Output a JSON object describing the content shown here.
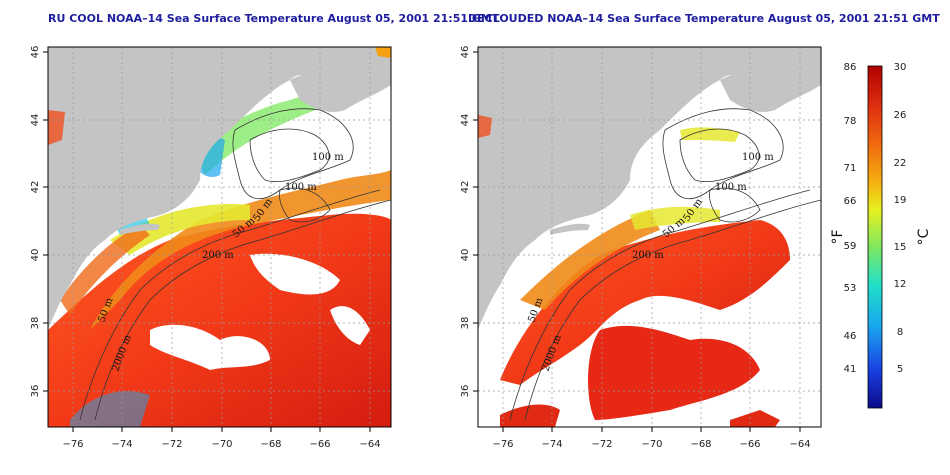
{
  "maps": [
    {
      "title": "RU COOL NOAA–14 Sea Surface Temperature August 05, 2001 21:51 GMT",
      "x_ticks": [
        "−76",
        "−74",
        "−72",
        "−70",
        "−68",
        "−66",
        "−64"
      ],
      "y_ticks": [
        "46",
        "44",
        "42",
        "40",
        "38",
        "36"
      ],
      "contour_labels": [
        "100 m",
        "100 m",
        "50 m",
        "50 m",
        "200 m",
        "50 m",
        "2000 m"
      ],
      "cloud_masked": false
    },
    {
      "title": "DECLOUDED NOAA–14 Sea Surface Temperature August 05, 2001 21:51 GMT",
      "x_ticks": [
        "−76",
        "−74",
        "−72",
        "−70",
        "−68",
        "−66",
        "−64"
      ],
      "y_ticks": [
        "46",
        "44",
        "42",
        "40",
        "38",
        "36"
      ],
      "contour_labels": [
        "100 m",
        "100 m",
        "50 m",
        "50 m",
        "200 m",
        "50 m",
        "2000 m"
      ],
      "cloud_masked": true
    }
  ],
  "colorbar": {
    "fahrenheit_ticks": [
      "86",
      "78",
      "71",
      "66",
      "59",
      "53",
      "46",
      "41"
    ],
    "celsius_ticks": [
      "30",
      "26",
      "22",
      "19",
      "15",
      "12",
      "8",
      "5"
    ],
    "fahrenheit_label": "°F",
    "celsius_label": "°C",
    "range_c": [
      2,
      30
    ],
    "colors": [
      "#0b0b8a",
      "#1a3fe0",
      "#19a7f0",
      "#22e0c8",
      "#7ee860",
      "#e8f020",
      "#f5b010",
      "#f07010",
      "#e03010",
      "#b00000"
    ]
  },
  "colors": {
    "land": "#c4c4c4",
    "cloud": "#ffffff",
    "title": "#1e1e9e",
    "grid": "#999999"
  }
}
